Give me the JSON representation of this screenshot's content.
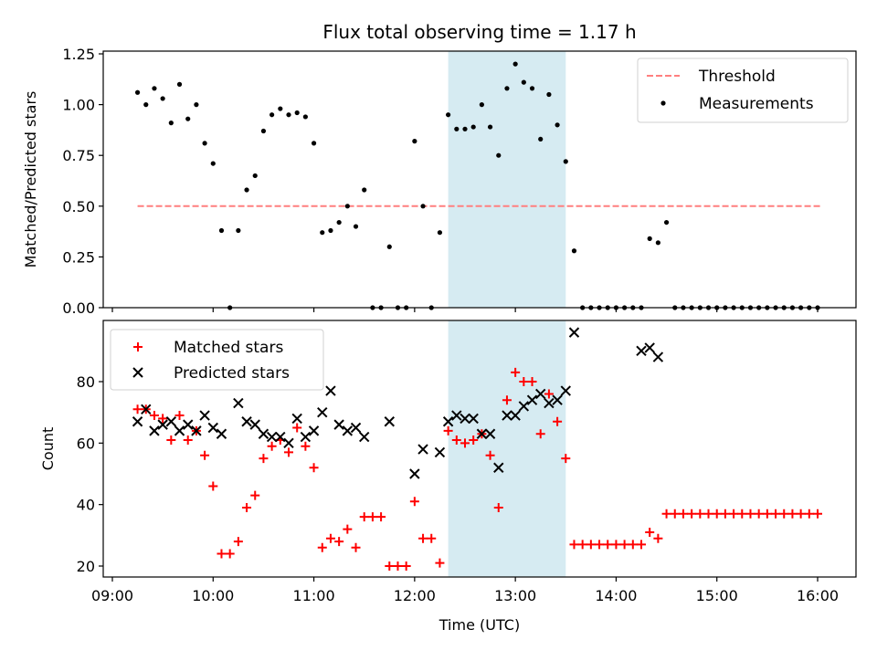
{
  "figure": {
    "title": "Flux total observing time = 1.17 h"
  },
  "chart_data": [
    {
      "type": "scatter",
      "title": "Flux total observing time = 1.17 h",
      "xlabel": "",
      "ylabel": "Matched/Predicted stars",
      "xlim": [
        "09:00",
        "16:00"
      ],
      "ylim": [
        0,
        1.25
      ],
      "yticks": [
        "0.00",
        "0.25",
        "0.50",
        "0.75",
        "1.00",
        "1.25"
      ],
      "grid": false,
      "legend_position": "upper-right",
      "highlight_span": {
        "from": "12:20",
        "to": "13:30"
      },
      "threshold": {
        "name": "Threshold",
        "value": 0.5,
        "from": "09:15",
        "to": "16:03",
        "color": "#ff7f7f",
        "style": "dashed"
      },
      "series": [
        {
          "name": "Measurements",
          "color": "#000000",
          "x": [
            "09:15",
            "09:20",
            "09:25",
            "09:30",
            "09:35",
            "09:40",
            "09:45",
            "09:50",
            "09:55",
            "10:00",
            "10:05",
            "10:10",
            "10:15",
            "10:20",
            "10:25",
            "10:30",
            "10:35",
            "10:40",
            "10:45",
            "10:50",
            "10:55",
            "11:00",
            "11:05",
            "11:10",
            "11:15",
            "11:20",
            "11:25",
            "11:30",
            "11:35",
            "11:40",
            "11:45",
            "11:50",
            "11:55",
            "12:00",
            "12:05",
            "12:10",
            "12:15",
            "12:20",
            "12:25",
            "12:30",
            "12:35",
            "12:40",
            "12:45",
            "12:50",
            "12:55",
            "13:00",
            "13:05",
            "13:10",
            "13:15",
            "13:20",
            "13:25",
            "13:30",
            "13:35",
            "13:40",
            "13:45",
            "13:50",
            "13:55",
            "14:00",
            "14:05",
            "14:10",
            "14:15",
            "14:20",
            "14:25",
            "14:30",
            "14:35",
            "14:40",
            "14:45",
            "14:50",
            "14:55",
            "15:00",
            "15:05",
            "15:10",
            "15:15",
            "15:20",
            "15:25",
            "15:30",
            "15:35",
            "15:40",
            "15:45",
            "15:50",
            "15:55",
            "16:00"
          ],
          "y": [
            1.06,
            1.0,
            1.08,
            1.03,
            0.91,
            1.1,
            0.93,
            1.0,
            0.81,
            0.71,
            0.38,
            0.0,
            0.38,
            0.58,
            0.65,
            0.87,
            0.95,
            0.98,
            0.95,
            0.96,
            0.94,
            0.81,
            0.37,
            0.38,
            0.42,
            0.5,
            0.4,
            0.58,
            0.0,
            0.0,
            0.3,
            0.0,
            0.0,
            0.82,
            0.5,
            0.0,
            0.37,
            0.95,
            0.88,
            0.88,
            0.89,
            1.0,
            0.89,
            0.75,
            1.08,
            1.2,
            1.11,
            1.08,
            0.83,
            1.05,
            0.9,
            0.72,
            0.28,
            0.0,
            0.0,
            0.0,
            0.0,
            0.0,
            0.0,
            0.0,
            0.0,
            0.34,
            0.32,
            0.42,
            0.0,
            0.0,
            0.0,
            0.0,
            0.0,
            0.0,
            0.0,
            0.0,
            0.0,
            0.0,
            0.0,
            0.0,
            0.0,
            0.0,
            0.0,
            0.0,
            0.0,
            0.0
          ]
        }
      ]
    },
    {
      "type": "scatter",
      "title": "",
      "xlabel": "Time (UTC)",
      "ylabel": "Count",
      "xlim": [
        "09:00",
        "16:00"
      ],
      "xticks": [
        "09:00",
        "10:00",
        "11:00",
        "12:00",
        "13:00",
        "14:00",
        "15:00",
        "16:00"
      ],
      "ylim": [
        16,
        98
      ],
      "yticks": [
        "20",
        "40",
        "60",
        "80"
      ],
      "grid": false,
      "legend_position": "upper-left",
      "highlight_span": {
        "from": "12:20",
        "to": "13:30"
      },
      "series": [
        {
          "name": "Matched stars",
          "marker": "+",
          "color": "#ff0000",
          "x": [
            "09:15",
            "09:20",
            "09:25",
            "09:30",
            "09:35",
            "09:40",
            "09:45",
            "09:50",
            "09:55",
            "10:00",
            "10:05",
            "10:10",
            "10:15",
            "10:20",
            "10:25",
            "10:30",
            "10:35",
            "10:40",
            "10:45",
            "10:50",
            "10:55",
            "11:00",
            "11:05",
            "11:10",
            "11:15",
            "11:20",
            "11:25",
            "11:30",
            "11:35",
            "11:40",
            "11:45",
            "11:50",
            "11:55",
            "12:00",
            "12:05",
            "12:10",
            "12:15",
            "12:20",
            "12:25",
            "12:30",
            "12:35",
            "12:40",
            "12:45",
            "12:50",
            "12:55",
            "13:00",
            "13:05",
            "13:10",
            "13:15",
            "13:20",
            "13:25",
            "13:30",
            "13:35",
            "13:40",
            "13:45",
            "13:50",
            "13:55",
            "14:00",
            "14:05",
            "14:10",
            "14:15",
            "14:20",
            "14:25",
            "14:30",
            "14:35",
            "14:40",
            "14:45",
            "14:50",
            "14:55",
            "15:00",
            "15:05",
            "15:10",
            "15:15",
            "15:20",
            "15:25",
            "15:30",
            "15:35",
            "15:40",
            "15:45",
            "15:50",
            "15:55",
            "16:00"
          ],
          "y": [
            71,
            71,
            69,
            68,
            61,
            69,
            61,
            64,
            56,
            46,
            24,
            24,
            28,
            39,
            43,
            55,
            59,
            61,
            57,
            65,
            59,
            52,
            26,
            29,
            28,
            32,
            26,
            36,
            36,
            36,
            20,
            20,
            20,
            41,
            29,
            29,
            21,
            64,
            61,
            60,
            61,
            63,
            56,
            39,
            74,
            83,
            80,
            80,
            63,
            76,
            67,
            55,
            27,
            27,
            27,
            27,
            27,
            27,
            27,
            27,
            27,
            31,
            29,
            37,
            37,
            37,
            37,
            37,
            37,
            37,
            37,
            37,
            37,
            37,
            37,
            37,
            37,
            37,
            37,
            37,
            37,
            37
          ]
        },
        {
          "name": "Predicted stars",
          "marker": "x",
          "color": "#000000",
          "x": [
            "09:15",
            "09:20",
            "09:25",
            "09:30",
            "09:35",
            "09:40",
            "09:45",
            "09:50",
            "09:55",
            "10:00",
            "10:05",
            "10:15",
            "10:20",
            "10:25",
            "10:30",
            "10:35",
            "10:40",
            "10:45",
            "10:50",
            "10:55",
            "11:00",
            "11:05",
            "11:10",
            "11:15",
            "11:20",
            "11:25",
            "11:30",
            "11:45",
            "12:00",
            "12:05",
            "12:15",
            "12:20",
            "12:25",
            "12:30",
            "12:35",
            "12:40",
            "12:45",
            "12:50",
            "12:55",
            "13:00",
            "13:05",
            "13:10",
            "13:15",
            "13:20",
            "13:25",
            "13:30",
            "13:35",
            "14:15",
            "14:20",
            "14:25"
          ],
          "y": [
            67,
            71,
            64,
            66,
            67,
            64,
            66,
            64,
            69,
            65,
            63,
            73,
            67,
            66,
            63,
            62,
            62,
            60,
            68,
            62,
            64,
            70,
            77,
            66,
            64,
            65,
            62,
            67,
            50,
            58,
            57,
            67,
            69,
            68,
            68,
            63,
            63,
            52,
            69,
            69,
            72,
            74,
            76,
            73,
            74,
            77,
            96,
            90,
            91,
            88
          ]
        }
      ]
    }
  ]
}
